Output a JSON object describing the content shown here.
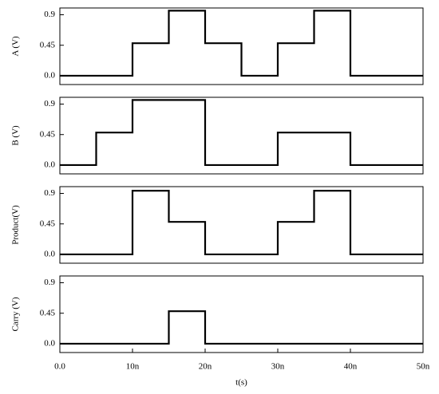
{
  "chart_data": [
    {
      "type": "line",
      "ylabel": "A (V)",
      "xlim": [
        0,
        5e-08
      ],
      "ylim": [
        -0.13,
        1.0
      ],
      "yticks": [
        {
          "value": 0,
          "label": "0.0"
        },
        0.45,
        0.9
      ],
      "x": [
        0,
        1e-08,
        1e-08,
        1.5e-08,
        1.5e-08,
        2e-08,
        2e-08,
        2.5e-08,
        2.5e-08,
        3e-08,
        3e-08,
        3.5e-08,
        3.5e-08,
        4e-08,
        4e-08,
        5e-08
      ],
      "series": [
        {
          "color": "#000000",
          "values": [
            0,
            0,
            0.48,
            0.48,
            0.96,
            0.96,
            0.48,
            0.48,
            0,
            0,
            0.48,
            0.48,
            0.96,
            0.96,
            0,
            0
          ]
        }
      ]
    },
    {
      "type": "line",
      "ylabel": "B (V)",
      "xlim": [
        0,
        5e-08
      ],
      "ylim": [
        -0.13,
        1.0
      ],
      "yticks": [
        {
          "value": 0,
          "label": "0.0"
        },
        0.45,
        0.9
      ],
      "x": [
        0,
        5e-09,
        5e-09,
        1e-08,
        1e-08,
        2e-08,
        2e-08,
        3e-08,
        3e-08,
        4e-08,
        4e-08,
        5e-08
      ],
      "series": [
        {
          "color": "#000000",
          "values": [
            0,
            0,
            0.48,
            0.48,
            0.96,
            0.96,
            0,
            0,
            0.48,
            0.48,
            0,
            0
          ]
        }
      ]
    },
    {
      "type": "line",
      "ylabel": "Product(V)",
      "xlim": [
        0,
        5e-08
      ],
      "ylim": [
        -0.13,
        1.0
      ],
      "yticks": [
        {
          "value": 0,
          "label": "0.0"
        },
        0.45,
        0.9
      ],
      "x": [
        0,
        1e-08,
        1e-08,
        1.5e-08,
        1.5e-08,
        2e-08,
        2e-08,
        3e-08,
        3e-08,
        3.5e-08,
        3.5e-08,
        4e-08,
        4e-08,
        5e-08
      ],
      "series": [
        {
          "color": "#000000",
          "values": [
            0,
            0,
            0.94,
            0.94,
            0.48,
            0.48,
            0,
            0,
            0.48,
            0.48,
            0.94,
            0.94,
            0,
            0
          ]
        }
      ]
    },
    {
      "type": "line",
      "ylabel": "Carry (V)",
      "xlabel": "t(s)",
      "xlim": [
        0,
        5e-08
      ],
      "ylim": [
        -0.13,
        1.0
      ],
      "yticks": [
        {
          "value": 0,
          "label": "0.0"
        },
        0.45,
        0.9
      ],
      "xticks": [
        {
          "value": 0,
          "label": "0.0"
        },
        {
          "value": 1e-08,
          "label": "10n"
        },
        {
          "value": 2e-08,
          "label": "20n"
        },
        {
          "value": 3e-08,
          "label": "30n"
        },
        {
          "value": 4e-08,
          "label": "40n"
        },
        {
          "value": 5e-08,
          "label": "50n"
        }
      ],
      "x": [
        0,
        1.5e-08,
        1.5e-08,
        2e-08,
        2e-08,
        5e-08
      ],
      "series": [
        {
          "color": "#000000",
          "values": [
            0,
            0,
            0.48,
            0.48,
            0,
            0
          ]
        }
      ]
    }
  ]
}
